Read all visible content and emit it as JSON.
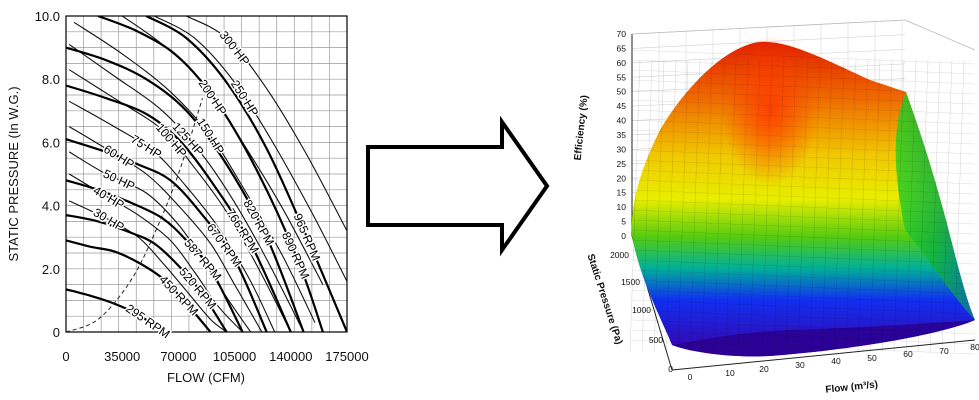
{
  "chart_data": [
    {
      "type": "line",
      "xlabel": "FLOW (CFM)",
      "ylabel": "STATIC PRESSURE  (In W.G.)",
      "xlim": [
        0,
        175000
      ],
      "ylim": [
        0,
        10
      ],
      "grid": true,
      "x_ticks": [
        0,
        35000,
        70000,
        105000,
        140000,
        175000
      ],
      "x_tick_labels": [
        "0",
        "35000",
        "70000",
        "105000",
        "140000",
        "175000"
      ],
      "y_ticks": [
        0,
        2,
        4,
        6,
        8,
        10
      ],
      "y_tick_labels": [
        "0",
        "2.0",
        "4.0",
        "6.0",
        "8.0",
        "10.0"
      ],
      "rpm_series": [
        {
          "name": "295 RPM",
          "x": [
            0,
            15000,
            30000,
            45000,
            55000,
            62000
          ],
          "y": [
            1.35,
            1.15,
            0.9,
            0.55,
            0.2,
            0
          ]
        },
        {
          "name": "450 RPM",
          "x": [
            0,
            15000,
            30000,
            45000,
            60000,
            75000,
            90000
          ],
          "y": [
            2.9,
            2.7,
            2.55,
            2.2,
            1.7,
            0.9,
            0
          ]
        },
        {
          "name": "520 RPM",
          "x": [
            0,
            20000,
            40000,
            55000,
            70000,
            85000,
            100000
          ],
          "y": [
            3.7,
            3.5,
            3.15,
            2.8,
            2.1,
            1.2,
            0
          ]
        },
        {
          "name": "587 RPM",
          "x": [
            0,
            20000,
            40000,
            60000,
            75000,
            90000,
            110000
          ],
          "y": [
            4.8,
            4.5,
            4.1,
            3.6,
            2.9,
            2.0,
            0
          ]
        },
        {
          "name": "670 RPM",
          "x": [
            0,
            25000,
            45000,
            65000,
            85000,
            105000,
            125000
          ],
          "y": [
            6.1,
            5.7,
            5.3,
            4.8,
            3.7,
            2.3,
            0
          ]
        },
        {
          "name": "766 RPM",
          "x": [
            0,
            25000,
            50000,
            70000,
            90000,
            115000,
            140000
          ],
          "y": [
            7.8,
            7.4,
            6.9,
            6.1,
            4.8,
            2.8,
            0
          ]
        },
        {
          "name": "820 RPM",
          "x": [
            0,
            25000,
            50000,
            75000,
            100000,
            125000,
            148000
          ],
          "y": [
            9.0,
            8.6,
            8.0,
            7.0,
            5.3,
            3.0,
            0
          ]
        },
        {
          "name": "890 RPM",
          "x": [
            20000,
            45000,
            70000,
            95000,
            120000,
            145000,
            160000
          ],
          "y": [
            10.0,
            9.5,
            8.7,
            7.2,
            5.0,
            2.2,
            0
          ]
        },
        {
          "name": "965 RPM",
          "x": [
            50000,
            75000,
            100000,
            125000,
            150000,
            175000
          ],
          "y": [
            10.0,
            9.3,
            7.9,
            5.8,
            3.0,
            0
          ]
        }
      ],
      "hp_series": [
        {
          "name": "30 HP",
          "x": [
            2000,
            25000,
            45000,
            60000,
            75000,
            90000,
            100000
          ],
          "y": [
            4.15,
            3.6,
            3.0,
            2.2,
            1.3,
            0.4,
            0
          ]
        },
        {
          "name": "40 HP",
          "x": [
            2000,
            25000,
            45000,
            65000,
            80000,
            95000,
            110000
          ],
          "y": [
            5.0,
            4.3,
            3.7,
            2.9,
            1.9,
            0.8,
            0
          ]
        },
        {
          "name": "50 HP",
          "x": [
            2000,
            25000,
            50000,
            70000,
            85000,
            100000,
            115000
          ],
          "y": [
            5.7,
            5.0,
            4.4,
            3.4,
            2.3,
            1.1,
            0
          ]
        },
        {
          "name": "60 HP",
          "x": [
            2000,
            25000,
            50000,
            70000,
            90000,
            105000,
            122000
          ],
          "y": [
            6.5,
            5.8,
            5.0,
            4.0,
            2.8,
            1.5,
            0
          ]
        },
        {
          "name": "75 HP",
          "x": [
            2000,
            30000,
            55000,
            75000,
            95000,
            115000,
            130000
          ],
          "y": [
            7.3,
            6.5,
            5.7,
            4.6,
            3.3,
            1.6,
            0
          ]
        },
        {
          "name": "100 HP",
          "x": [
            2000,
            30000,
            60000,
            80000,
            100000,
            120000,
            140000
          ],
          "y": [
            8.3,
            7.4,
            6.4,
            5.2,
            3.8,
            2.0,
            0
          ]
        },
        {
          "name": "125 HP",
          "x": [
            2000,
            30000,
            60000,
            85000,
            105000,
            125000,
            148000
          ],
          "y": [
            9.1,
            8.1,
            7.0,
            5.6,
            4.1,
            2.3,
            0
          ]
        },
        {
          "name": "150 HP",
          "x": [
            5000,
            35000,
            65000,
            90000,
            110000,
            135000,
            155000
          ],
          "y": [
            9.8,
            8.8,
            7.6,
            6.2,
            4.6,
            2.4,
            0.3
          ]
        },
        {
          "name": "200 HP",
          "x": [
            35000,
            60000,
            85000,
            110000,
            135000,
            160000
          ],
          "y": [
            10.0,
            9.1,
            7.9,
            6.0,
            3.9,
            1.5
          ]
        },
        {
          "name": "250 HP",
          "x": [
            55000,
            80000,
            105000,
            130000,
            155000,
            175000
          ],
          "y": [
            10.0,
            9.3,
            7.9,
            5.9,
            3.6,
            1.6
          ]
        },
        {
          "name": "300 HP",
          "x": [
            75000,
            100000,
            125000,
            150000,
            175000
          ],
          "y": [
            10.0,
            9.3,
            7.7,
            5.6,
            3.2
          ]
        }
      ],
      "system_curve": {
        "x": [
          0,
          20000,
          40000,
          55000,
          70000,
          85000
        ],
        "y": [
          0,
          0.4,
          1.6,
          3.1,
          5.0,
          7.4
        ]
      }
    },
    {
      "type": "surface",
      "xlabel": "Flow (m³/s)",
      "ylabel": "Static Pressure (Pa)",
      "zlabel": "Efficiency (%)",
      "x_tick_labels": [
        "0",
        "10",
        "20",
        "30",
        "40",
        "50",
        "60",
        "70",
        "80"
      ],
      "y_tick_labels": [
        "0",
        "500",
        "1000",
        "1500",
        "2000"
      ],
      "z_tick_labels": [
        "0",
        "5",
        "10",
        "15",
        "20",
        "25",
        "30",
        "35",
        "40",
        "45",
        "50",
        "55",
        "60",
        "65",
        "70"
      ],
      "zlim": [
        0,
        70
      ],
      "peak_efficiency": 68
    }
  ],
  "arrow": {
    "direction": "right"
  }
}
